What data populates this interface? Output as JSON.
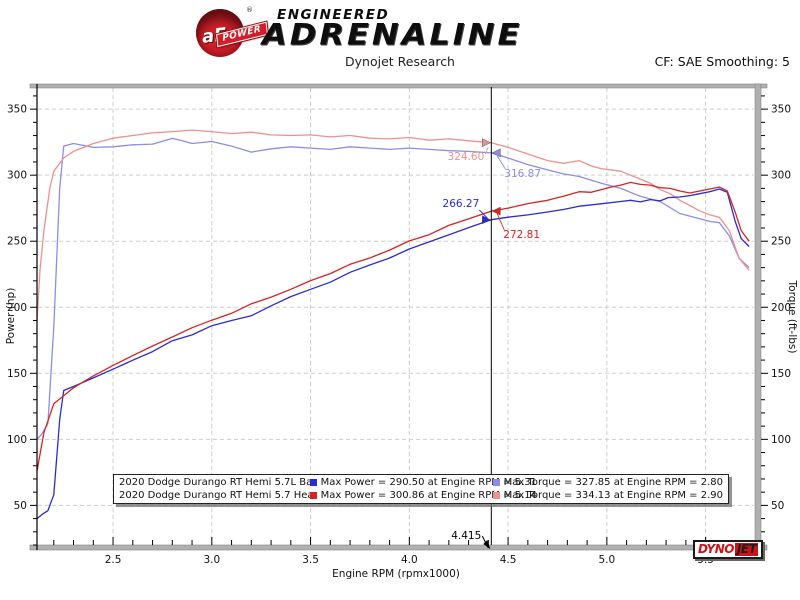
{
  "brand": {
    "circle_text": "aFe",
    "reg_mark": "®",
    "ribbon": "POWER",
    "line1": "ENGINEERED",
    "line2": "ADRENALINE"
  },
  "subtitle": "Dynojet Research",
  "cf_label": "CF: SAE Smoothing: 5",
  "footer_logo": {
    "dyno": "DYNO",
    "jet": "JET"
  },
  "chart_data": {
    "type": "line",
    "title": "Dynojet Research",
    "correction_factor": "CF: SAE Smoothing: 5",
    "xlabel": "Engine RPM (rpmx1000)",
    "ylabel_left": "Power (hp)",
    "ylabel_right": "Torque (ft-lbs)",
    "x_axis": {
      "min": 2.115,
      "max": 5.75,
      "ticks": [
        2.5,
        3.0,
        3.5,
        4.0,
        4.5,
        5.0,
        5.5
      ],
      "minor_step": 0.1,
      "grid": true
    },
    "y_axis": {
      "min": 20,
      "max": 366,
      "ticks": [
        50,
        100,
        150,
        200,
        250,
        300,
        350
      ],
      "minor_step": 10,
      "grid": true
    },
    "colors": {
      "power_baseline": "#2b2bd0",
      "power_headers": "#d42424",
      "torque_baseline": "#8d8de6",
      "torque_headers": "#ec9090",
      "grid": "#cdcdcd",
      "frame": "#b0b0b0",
      "cursor": "#000000"
    },
    "series": [
      {
        "key": "torque_baseline",
        "name": "Baseline Torque (ft-lbs)",
        "axis": "right",
        "points": [
          [
            2.115,
            100
          ],
          [
            2.14,
            104
          ],
          [
            2.17,
            112
          ],
          [
            2.2,
            185
          ],
          [
            2.23,
            290
          ],
          [
            2.25,
            322
          ],
          [
            2.3,
            324
          ],
          [
            2.4,
            321
          ],
          [
            2.5,
            321.5
          ],
          [
            2.6,
            323
          ],
          [
            2.7,
            323.5
          ],
          [
            2.8,
            327.85
          ],
          [
            2.85,
            326
          ],
          [
            2.9,
            324
          ],
          [
            3.0,
            325.5
          ],
          [
            3.1,
            322
          ],
          [
            3.2,
            317.5
          ],
          [
            3.3,
            320
          ],
          [
            3.4,
            321.5
          ],
          [
            3.5,
            320.5
          ],
          [
            3.6,
            319.5
          ],
          [
            3.7,
            321.5
          ],
          [
            3.8,
            320.5
          ],
          [
            3.9,
            319.5
          ],
          [
            4.0,
            320.5
          ],
          [
            4.1,
            319.5
          ],
          [
            4.2,
            318.5
          ],
          [
            4.3,
            318
          ],
          [
            4.415,
            316.87
          ],
          [
            4.5,
            313
          ],
          [
            4.6,
            308
          ],
          [
            4.7,
            304
          ],
          [
            4.78,
            301
          ],
          [
            4.86,
            299
          ],
          [
            4.97,
            294
          ],
          [
            5.07,
            290
          ],
          [
            5.17,
            284
          ],
          [
            5.27,
            280
          ],
          [
            5.37,
            271
          ],
          [
            5.42,
            269
          ],
          [
            5.47,
            267
          ],
          [
            5.52,
            265
          ],
          [
            5.57,
            264
          ],
          [
            5.62,
            254
          ],
          [
            5.67,
            237
          ],
          [
            5.72,
            230
          ]
        ]
      },
      {
        "key": "torque_headers",
        "name": "Headers Torque (ft-lbs)",
        "axis": "right",
        "points": [
          [
            2.115,
            190
          ],
          [
            2.13,
            228
          ],
          [
            2.15,
            258
          ],
          [
            2.18,
            290
          ],
          [
            2.2,
            303
          ],
          [
            2.25,
            313
          ],
          [
            2.3,
            318
          ],
          [
            2.4,
            324
          ],
          [
            2.5,
            328
          ],
          [
            2.6,
            330
          ],
          [
            2.7,
            332
          ],
          [
            2.8,
            333
          ],
          [
            2.9,
            334.13
          ],
          [
            3.0,
            333
          ],
          [
            3.1,
            331.5
          ],
          [
            3.2,
            332.5
          ],
          [
            3.3,
            330.5
          ],
          [
            3.4,
            330
          ],
          [
            3.5,
            330.5
          ],
          [
            3.6,
            329
          ],
          [
            3.7,
            330
          ],
          [
            3.8,
            328
          ],
          [
            3.9,
            327.5
          ],
          [
            4.0,
            328.5
          ],
          [
            4.1,
            326.5
          ],
          [
            4.2,
            327.5
          ],
          [
            4.3,
            326
          ],
          [
            4.415,
            324.6
          ],
          [
            4.5,
            321
          ],
          [
            4.6,
            316
          ],
          [
            4.7,
            311
          ],
          [
            4.78,
            309
          ],
          [
            4.86,
            311
          ],
          [
            4.92,
            307
          ],
          [
            4.97,
            305
          ],
          [
            5.07,
            303
          ],
          [
            5.12,
            300
          ],
          [
            5.17,
            297
          ],
          [
            5.22,
            294
          ],
          [
            5.27,
            289
          ],
          [
            5.32,
            286
          ],
          [
            5.37,
            281
          ],
          [
            5.42,
            277
          ],
          [
            5.47,
            273
          ],
          [
            5.52,
            270
          ],
          [
            5.57,
            268
          ],
          [
            5.62,
            258
          ],
          [
            5.67,
            237
          ],
          [
            5.72,
            228
          ]
        ]
      },
      {
        "key": "power_baseline",
        "name": "Baseline Power (hp)",
        "axis": "left",
        "points": [
          [
            2.115,
            40
          ],
          [
            2.14,
            43
          ],
          [
            2.17,
            46
          ],
          [
            2.2,
            58
          ],
          [
            2.23,
            115
          ],
          [
            2.25,
            137
          ],
          [
            2.3,
            140
          ],
          [
            2.4,
            146.5
          ],
          [
            2.5,
            153.1
          ],
          [
            2.6,
            159.9
          ],
          [
            2.7,
            166.4
          ],
          [
            2.8,
            174.7
          ],
          [
            2.9,
            179.1
          ],
          [
            3.0,
            186
          ],
          [
            3.1,
            190
          ],
          [
            3.2,
            193.5
          ],
          [
            3.3,
            201.1
          ],
          [
            3.4,
            208.1
          ],
          [
            3.5,
            213.6
          ],
          [
            3.6,
            219
          ],
          [
            3.7,
            226.5
          ],
          [
            3.8,
            232
          ],
          [
            3.9,
            237.3
          ],
          [
            4.0,
            244.1
          ],
          [
            4.1,
            249.5
          ],
          [
            4.2,
            254.8
          ],
          [
            4.3,
            260.3
          ],
          [
            4.415,
            266.27
          ],
          [
            4.5,
            268.2
          ],
          [
            4.6,
            269.9
          ],
          [
            4.7,
            272.1
          ],
          [
            4.78,
            274
          ],
          [
            4.86,
            276.5
          ],
          [
            4.97,
            278.3
          ],
          [
            5.07,
            280.1
          ],
          [
            5.12,
            281
          ],
          [
            5.17,
            279.8
          ],
          [
            5.22,
            281.5
          ],
          [
            5.27,
            280.5
          ],
          [
            5.31,
            283
          ],
          [
            5.37,
            283.5
          ],
          [
            5.42,
            284.5
          ],
          [
            5.47,
            286
          ],
          [
            5.52,
            287.5
          ],
          [
            5.57,
            289.5
          ],
          [
            5.61,
            287
          ],
          [
            5.65,
            265
          ],
          [
            5.68,
            252
          ],
          [
            5.72,
            246
          ]
        ]
      },
      {
        "key": "power_headers",
        "name": "Headers Power (hp)",
        "axis": "left",
        "points": [
          [
            2.115,
            76
          ],
          [
            2.15,
            105
          ],
          [
            2.2,
            127
          ],
          [
            2.25,
            133
          ],
          [
            2.3,
            139
          ],
          [
            2.4,
            148
          ],
          [
            2.5,
            156
          ],
          [
            2.6,
            163.4
          ],
          [
            2.7,
            170.7
          ],
          [
            2.8,
            177.5
          ],
          [
            2.9,
            184.5
          ],
          [
            3.0,
            190.2
          ],
          [
            3.1,
            195.4
          ],
          [
            3.2,
            202.6
          ],
          [
            3.3,
            207.7
          ],
          [
            3.4,
            213.6
          ],
          [
            3.5,
            220.2
          ],
          [
            3.6,
            225.5
          ],
          [
            3.7,
            232.5
          ],
          [
            3.8,
            237.3
          ],
          [
            3.9,
            243.3
          ],
          [
            4.0,
            250.2
          ],
          [
            4.1,
            254.9
          ],
          [
            4.2,
            262
          ],
          [
            4.3,
            266.9
          ],
          [
            4.415,
            272.81
          ],
          [
            4.5,
            275.1
          ],
          [
            4.6,
            278.5
          ],
          [
            4.7,
            281
          ],
          [
            4.78,
            284
          ],
          [
            4.86,
            287.5
          ],
          [
            4.92,
            287
          ],
          [
            4.97,
            289
          ],
          [
            5.02,
            291
          ],
          [
            5.07,
            292.5
          ],
          [
            5.12,
            294.5
          ],
          [
            5.17,
            293
          ],
          [
            5.22,
            292.5
          ],
          [
            5.27,
            290.5
          ],
          [
            5.32,
            290
          ],
          [
            5.37,
            288
          ],
          [
            5.42,
            286.5
          ],
          [
            5.47,
            288
          ],
          [
            5.52,
            289.5
          ],
          [
            5.57,
            291
          ],
          [
            5.61,
            288
          ],
          [
            5.65,
            272
          ],
          [
            5.68,
            258
          ],
          [
            5.72,
            250
          ]
        ]
      }
    ],
    "cursor": {
      "x_value": 4.415,
      "x_label": "4.415",
      "readouts": [
        {
          "series": "torque_headers",
          "label": "324.60",
          "value": 324.6
        },
        {
          "series": "torque_baseline",
          "label": "316.87",
          "value": 316.87
        },
        {
          "series": "power_baseline",
          "label": "266.27",
          "value": 266.27
        },
        {
          "series": "power_headers",
          "label": "272.81",
          "value": 272.81
        }
      ]
    },
    "legend": {
      "rows": [
        {
          "file": "2020 Dodge Durango RT Hemi 5.7L Baseline_2.wp8",
          "power_series": "power_baseline",
          "max_power_text": "Max Power = 290.50 at Engine RPM = 5.31",
          "torque_series": "torque_baseline",
          "max_torque_text": "Max Torque = 327.85 at Engine RPM = 2.80"
        },
        {
          "file": "2020 Dodge Durango RT Hemi 5.7 Headers_3.wp8",
          "power_series": "power_headers",
          "max_power_text": "Max Power = 300.86 at Engine RPM = 5.14",
          "torque_series": "torque_headers",
          "max_torque_text": "Max Torque = 334.13 at Engine RPM = 2.90"
        }
      ]
    }
  }
}
